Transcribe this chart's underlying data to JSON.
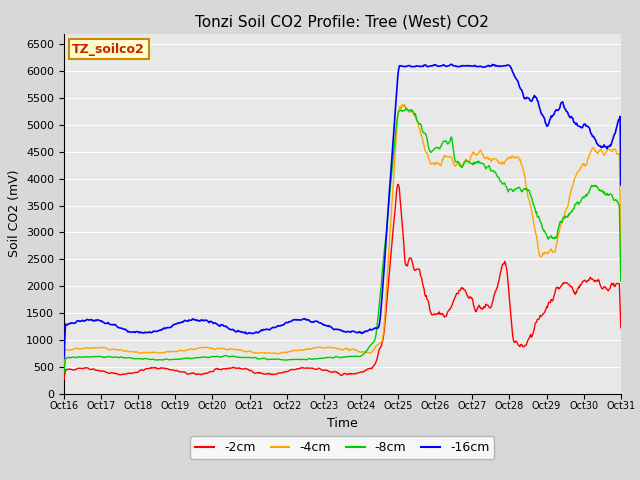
{
  "title": "Tonzi Soil CO2 Profile: Tree (West) CO2",
  "ylabel": "Soil CO2 (mV)",
  "xlabel": "Time",
  "watermark": "TZ_soilco2",
  "ylim": [
    0,
    6700
  ],
  "yticks": [
    0,
    500,
    1000,
    1500,
    2000,
    2500,
    3000,
    3500,
    4000,
    4500,
    5000,
    5500,
    6000,
    6500
  ],
  "xtick_labels": [
    "Oct 16",
    "Oct 17",
    "Oct 18",
    "Oct 19",
    "Oct 20",
    "Oct 21",
    "Oct 22",
    "Oct 23",
    "Oct 24",
    "Oct 25",
    "Oct 26",
    "Oct 27",
    "Oct 28",
    "Oct 29",
    "Oct 30",
    "Oct 31"
  ],
  "colors": {
    "-2cm": "#ff0000",
    "-4cm": "#ffa500",
    "-8cm": "#00cc00",
    "-16cm": "#0000ff"
  },
  "legend_labels": [
    "-2cm",
    "-4cm",
    "-8cm",
    "-16cm"
  ],
  "fig_bg_color": "#d8d8d8",
  "plot_bg_color": "#e8e8e8",
  "title_fontsize": 11,
  "axis_label_fontsize": 9,
  "tick_fontsize": 8,
  "legend_fontsize": 9,
  "watermark_fontsize": 9
}
